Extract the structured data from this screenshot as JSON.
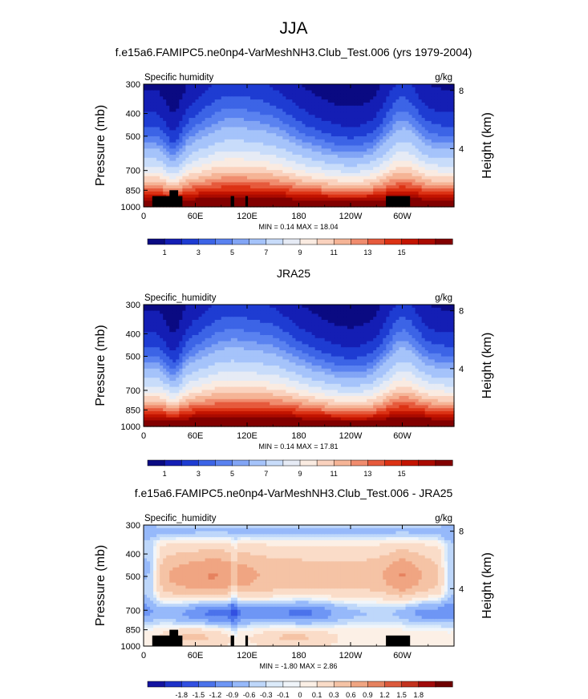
{
  "figure": {
    "title": "JJA"
  },
  "colors": {
    "seq": [
      "#0a0a82",
      "#141eb4",
      "#1e3cd2",
      "#3c64e6",
      "#5a82f0",
      "#82a5f5",
      "#a5c3fa",
      "#c8dcfa",
      "#e6ebf5",
      "#faebe1",
      "#fad2be",
      "#f5b496",
      "#f08c6e",
      "#e65a3c",
      "#dc3214",
      "#c31400",
      "#aa0a00",
      "#820000"
    ],
    "div": [
      "#1414a0",
      "#1e32c8",
      "#3250e1",
      "#4b73eb",
      "#6e96f5",
      "#96b9fa",
      "#bed7fa",
      "#dcebfa",
      "#f0f5fa",
      "#fcf0e6",
      "#fadcc8",
      "#f5c3a5",
      "#f0a582",
      "#e6825f",
      "#dc5a3c",
      "#c3321e",
      "#a00a0a",
      "#6e0000"
    ],
    "land": "#000000"
  },
  "chart_data": [
    {
      "type": "heatmap",
      "title": "f.e15a6.FAMIPC5.ne0np4-VarMeshNH3.Club_Test.006 (yrs 1979-2004)",
      "left_label": "Specific humidity",
      "units": "g/kg",
      "ylabel": "Pressure (mb)",
      "y2label": "Height (km)",
      "xticks": [
        "0",
        "60E",
        "120E",
        "180",
        "120W",
        "60W"
      ],
      "xtick_lon": [
        0,
        60,
        120,
        180,
        240,
        300
      ],
      "xlim": [
        0,
        360
      ],
      "yticks": [
        "300",
        "400",
        "500",
        "700",
        "850",
        "1000"
      ],
      "ytick_p": [
        300,
        400,
        500,
        700,
        850,
        1000
      ],
      "ylim": [
        1000,
        300
      ],
      "y2ticks": [
        "8",
        "4"
      ],
      "y2tick_km": [
        8,
        4
      ],
      "stats": "MIN =  0.14  MAX = 18.04",
      "cbar_labels": [
        "1",
        "3",
        "5",
        "7",
        "9",
        "11",
        "13",
        "15"
      ],
      "cbar_levels": [
        0.5,
        1,
        1.5,
        2,
        2.5,
        3,
        4,
        5,
        6,
        7,
        8,
        9,
        10,
        11,
        12,
        13,
        14,
        15,
        16
      ],
      "field": "model",
      "has_land": true
    },
    {
      "type": "heatmap",
      "title": "JRA25",
      "left_label": "Specific_humidity",
      "units": "g/kg",
      "ylabel": "Pressure (mb)",
      "y2label": "Height (km)",
      "xticks": [
        "0",
        "60E",
        "120E",
        "180",
        "120W",
        "60W"
      ],
      "xtick_lon": [
        0,
        60,
        120,
        180,
        240,
        300
      ],
      "xlim": [
        0,
        360
      ],
      "yticks": [
        "300",
        "400",
        "500",
        "700",
        "850",
        "1000"
      ],
      "ytick_p": [
        300,
        400,
        500,
        700,
        850,
        1000
      ],
      "ylim": [
        1000,
        300
      ],
      "y2ticks": [
        "8",
        "4"
      ],
      "y2tick_km": [
        8,
        4
      ],
      "stats": "MIN =  0.14  MAX = 17.81",
      "cbar_labels": [
        "1",
        "3",
        "5",
        "7",
        "9",
        "11",
        "13",
        "15"
      ],
      "cbar_levels": [
        0.5,
        1,
        1.5,
        2,
        2.5,
        3,
        4,
        5,
        6,
        7,
        8,
        9,
        10,
        11,
        12,
        13,
        14,
        15,
        16
      ],
      "field": "obs",
      "has_land": false
    },
    {
      "type": "heatmap",
      "title": "f.e15a6.FAMIPC5.ne0np4-VarMeshNH3.Club_Test.006 - JRA25",
      "left_label": "Specific_humidity",
      "units": "g/kg",
      "ylabel": "Pressure (mb)",
      "y2label": "Height (km)",
      "xticks": [
        "0",
        "60E",
        "120E",
        "180",
        "120W",
        "60W"
      ],
      "xtick_lon": [
        0,
        60,
        120,
        180,
        240,
        300
      ],
      "xlim": [
        0,
        360
      ],
      "yticks": [
        "300",
        "400",
        "500",
        "700",
        "850",
        "1000"
      ],
      "ytick_p": [
        300,
        400,
        500,
        700,
        850,
        1000
      ],
      "ylim": [
        1000,
        300
      ],
      "y2ticks": [
        "8",
        "4"
      ],
      "y2tick_km": [
        8,
        4
      ],
      "stats": "MIN = -1.80  MAX =  2.86",
      "cbar_labels": [
        "-1.8",
        "-1.5",
        "-1.2",
        "-0.9",
        "-0.6",
        "-0.3",
        "-0.1",
        "0",
        "0.1",
        "0.3",
        "0.6",
        "0.9",
        "1.2",
        "1.5",
        "1.8"
      ],
      "cbar_levels": [
        -1.8,
        -1.5,
        -1.2,
        -0.9,
        -0.6,
        -0.3,
        -0.1,
        0,
        0.1,
        0.3,
        0.6,
        0.9,
        1.2,
        1.5,
        1.8
      ],
      "field": "diff",
      "has_land": true
    }
  ]
}
